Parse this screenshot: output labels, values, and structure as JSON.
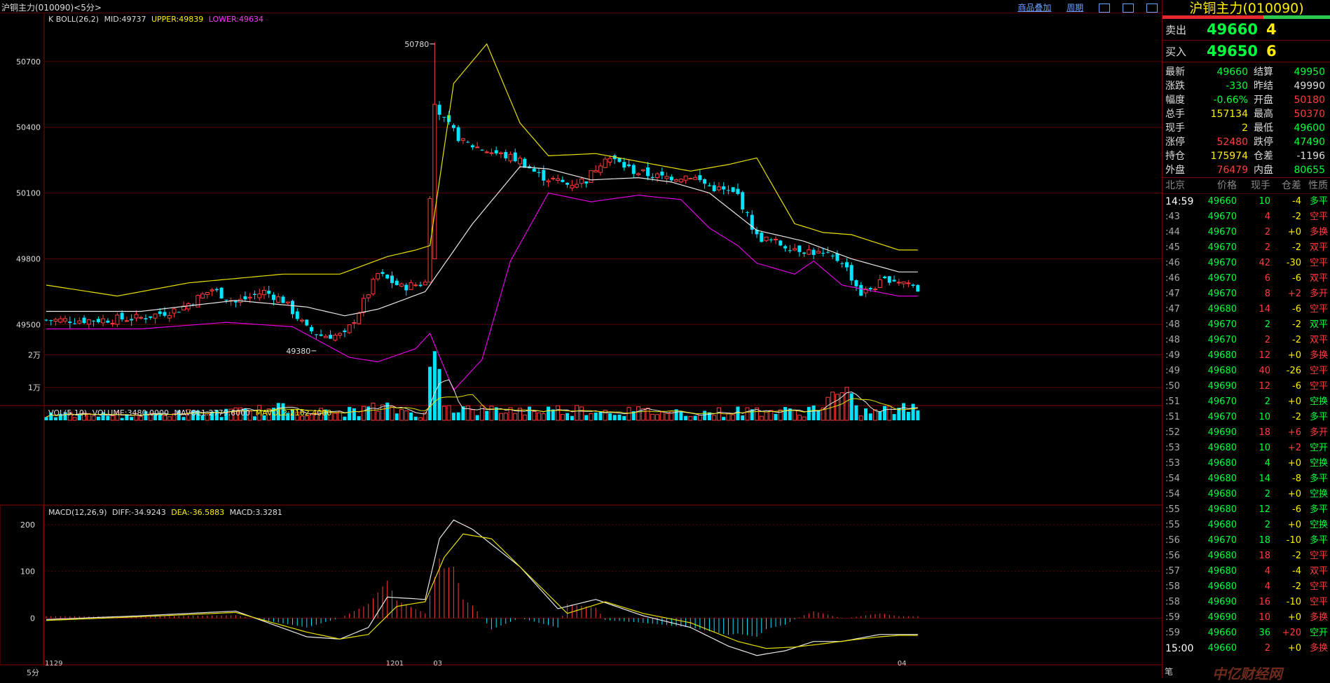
{
  "window": {
    "title": "沪铜主力(010090)<5分>",
    "links": [
      "商品叠加",
      "周期"
    ]
  },
  "indicators": {
    "boll": {
      "label": "K  BOLL(26,2)",
      "mid": "MID:49737",
      "upper": "UPPER:49839",
      "lower": "LOWER:49634"
    },
    "vol": {
      "label": "VOL(5,10)",
      "volume": "VOLUME:3480.0000",
      "mavol1": "MAVOL1:2779.6000",
      "mavol2": "MAVOL2:2162.4000"
    },
    "macd": {
      "label": "MACD(12,26,9)",
      "diff": "DIFF:-34.9243",
      "dea": "DEA:-36.5883",
      "macd": "MACD:3.3281"
    }
  },
  "chart_data": {
    "type": "candlestick",
    "price_axis": {
      "ticks": [
        "50700",
        "50400",
        "50100",
        "49800",
        "49500"
      ],
      "values": [
        50700,
        50400,
        50100,
        49800,
        49500
      ],
      "range": [
        49210,
        50920
      ]
    },
    "volume_axis": {
      "ticks": [
        "2万",
        "1万"
      ],
      "values": [
        20000,
        10000
      ],
      "range": [
        0,
        23500
      ]
    },
    "macd_axis": {
      "ticks": [
        "200",
        "100",
        "0"
      ],
      "values": [
        200,
        100,
        0
      ],
      "range": [
        -100,
        230
      ]
    },
    "x_labels": [
      "1129",
      "1201",
      "03",
      "04"
    ],
    "x_label_index": [
      0,
      72,
      82,
      180
    ],
    "period": "5分",
    "annotations": [
      {
        "text": "50780",
        "value": 50780,
        "index": 82
      },
      {
        "text": "49380",
        "value": 49380,
        "index": 57
      }
    ],
    "close_waypoints": [
      [
        0,
        49520
      ],
      [
        10,
        49520
      ],
      [
        20,
        49530
      ],
      [
        28,
        49570
      ],
      [
        35,
        49660
      ],
      [
        40,
        49600
      ],
      [
        46,
        49650
      ],
      [
        50,
        49610
      ],
      [
        52,
        49560
      ],
      [
        55,
        49480
      ],
      [
        58,
        49450
      ],
      [
        63,
        49450
      ],
      [
        66,
        49560
      ],
      [
        70,
        49730
      ],
      [
        75,
        49670
      ],
      [
        80,
        49690
      ],
      [
        82,
        50500
      ],
      [
        84,
        50430
      ],
      [
        88,
        50330
      ],
      [
        95,
        50280
      ],
      [
        100,
        50250
      ],
      [
        104,
        50180
      ],
      [
        110,
        50140
      ],
      [
        114,
        50160
      ],
      [
        118,
        50270
      ],
      [
        124,
        50200
      ],
      [
        130,
        50170
      ],
      [
        136,
        50180
      ],
      [
        140,
        50130
      ],
      [
        146,
        50090
      ],
      [
        150,
        49900
      ],
      [
        156,
        49860
      ],
      [
        162,
        49830
      ],
      [
        168,
        49790
      ],
      [
        172,
        49640
      ],
      [
        178,
        49710
      ],
      [
        182,
        49690
      ],
      [
        184,
        49660
      ]
    ],
    "upper_waypoints": [
      [
        0,
        49680
      ],
      [
        15,
        49630
      ],
      [
        30,
        49690
      ],
      [
        50,
        49730
      ],
      [
        62,
        49730
      ],
      [
        72,
        49810
      ],
      [
        78,
        49840
      ],
      [
        81,
        49860
      ],
      [
        86,
        50600
      ],
      [
        93,
        50780
      ],
      [
        100,
        50420
      ],
      [
        106,
        50270
      ],
      [
        116,
        50280
      ],
      [
        126,
        50240
      ],
      [
        136,
        50200
      ],
      [
        144,
        50230
      ],
      [
        150,
        50260
      ],
      [
        158,
        49960
      ],
      [
        164,
        49920
      ],
      [
        170,
        49910
      ],
      [
        180,
        49840
      ]
    ],
    "mid_waypoints": [
      [
        0,
        49560
      ],
      [
        20,
        49560
      ],
      [
        40,
        49610
      ],
      [
        55,
        49580
      ],
      [
        63,
        49540
      ],
      [
        70,
        49570
      ],
      [
        80,
        49650
      ],
      [
        90,
        49960
      ],
      [
        100,
        50220
      ],
      [
        106,
        50210
      ],
      [
        115,
        50160
      ],
      [
        125,
        50170
      ],
      [
        132,
        50150
      ],
      [
        140,
        50100
      ],
      [
        150,
        49930
      ],
      [
        160,
        49880
      ],
      [
        170,
        49800
      ],
      [
        180,
        49740
      ]
    ],
    "lower_waypoints": [
      [
        0,
        49480
      ],
      [
        20,
        49480
      ],
      [
        38,
        49510
      ],
      [
        52,
        49490
      ],
      [
        58,
        49420
      ],
      [
        64,
        49350
      ],
      [
        70,
        49330
      ],
      [
        78,
        49390
      ],
      [
        81,
        49460
      ],
      [
        86,
        49200
      ],
      [
        92,
        49340
      ],
      [
        98,
        49790
      ],
      [
        106,
        50100
      ],
      [
        115,
        50060
      ],
      [
        125,
        50090
      ],
      [
        134,
        50070
      ],
      [
        140,
        49940
      ],
      [
        146,
        49860
      ],
      [
        150,
        49780
      ],
      [
        158,
        49730
      ],
      [
        162,
        49790
      ],
      [
        168,
        49680
      ],
      [
        180,
        49630
      ]
    ],
    "volume_waypoints": [
      [
        0,
        1500
      ],
      [
        20,
        1800
      ],
      [
        40,
        2500
      ],
      [
        50,
        3500
      ],
      [
        60,
        2200
      ],
      [
        65,
        2800
      ],
      [
        70,
        3800
      ],
      [
        75,
        3000
      ],
      [
        80,
        1700
      ],
      [
        81,
        12000
      ],
      [
        82,
        22000
      ],
      [
        83,
        14000
      ],
      [
        84,
        9000
      ],
      [
        86,
        4000
      ],
      [
        90,
        3000
      ],
      [
        110,
        3200
      ],
      [
        115,
        3300
      ],
      [
        120,
        2800
      ],
      [
        140,
        2400
      ],
      [
        150,
        3000
      ],
      [
        160,
        2500
      ],
      [
        168,
        8000
      ],
      [
        172,
        2500
      ],
      [
        180,
        3500
      ]
    ],
    "dif_waypoints": [
      [
        0,
        -3
      ],
      [
        20,
        5
      ],
      [
        40,
        15
      ],
      [
        55,
        -40
      ],
      [
        62,
        -45
      ],
      [
        68,
        -20
      ],
      [
        72,
        45
      ],
      [
        80,
        40
      ],
      [
        83,
        170
      ],
      [
        86,
        210
      ],
      [
        90,
        190
      ],
      [
        100,
        110
      ],
      [
        108,
        20
      ],
      [
        116,
        40
      ],
      [
        126,
        5
      ],
      [
        136,
        -20
      ],
      [
        144,
        -60
      ],
      [
        150,
        -80
      ],
      [
        156,
        -70
      ],
      [
        162,
        -50
      ],
      [
        168,
        -50
      ],
      [
        176,
        -35
      ],
      [
        180,
        -35
      ]
    ],
    "dea_waypoints": [
      [
        0,
        -5
      ],
      [
        20,
        3
      ],
      [
        40,
        12
      ],
      [
        55,
        -30
      ],
      [
        62,
        -45
      ],
      [
        68,
        -35
      ],
      [
        74,
        25
      ],
      [
        80,
        35
      ],
      [
        84,
        130
      ],
      [
        88,
        180
      ],
      [
        94,
        170
      ],
      [
        104,
        70
      ],
      [
        110,
        10
      ],
      [
        118,
        35
      ],
      [
        126,
        10
      ],
      [
        136,
        -10
      ],
      [
        146,
        -50
      ],
      [
        152,
        -65
      ],
      [
        158,
        -62
      ],
      [
        164,
        -55
      ],
      [
        170,
        -47
      ],
      [
        176,
        -40
      ],
      [
        180,
        -37
      ]
    ]
  },
  "quote_panel": {
    "title": "沪铜主力(010090)",
    "sell": {
      "label": "卖出",
      "price": "49660",
      "vol": "4"
    },
    "buy": {
      "label": "买入",
      "price": "49650",
      "vol": "6"
    },
    "stats": [
      [
        {
          "l": "最新",
          "v": "49660",
          "c": "g"
        },
        {
          "l": "结算",
          "v": "49950",
          "c": "g"
        }
      ],
      [
        {
          "l": "涨跌",
          "v": "-330",
          "c": "g"
        },
        {
          "l": "昨结",
          "v": "49990",
          "c": "w"
        }
      ],
      [
        {
          "l": "幅度",
          "v": "-0.66%",
          "c": "g"
        },
        {
          "l": "开盘",
          "v": "50180",
          "c": "r"
        }
      ],
      [
        {
          "l": "总手",
          "v": "157134",
          "c": "y"
        },
        {
          "l": "最高",
          "v": "50370",
          "c": "r"
        }
      ],
      [
        {
          "l": "现手",
          "v": "2",
          "c": "y"
        },
        {
          "l": "最低",
          "v": "49600",
          "c": "g"
        }
      ],
      [
        {
          "l": "涨停",
          "v": "52480",
          "c": "r"
        },
        {
          "l": "跌停",
          "v": "47490",
          "c": "g"
        }
      ],
      [
        {
          "l": "持仓",
          "v": "175974",
          "c": "y"
        },
        {
          "l": "仓差",
          "v": "-1196",
          "c": "w"
        }
      ],
      [
        {
          "l": "外盘",
          "v": "76479",
          "c": "r"
        },
        {
          "l": "内盘",
          "v": "80655",
          "c": "g"
        }
      ]
    ],
    "ticks_header": [
      "北京",
      "价格",
      "现手",
      "仓差",
      "性质"
    ],
    "ticks": [
      [
        "14:59",
        "49660",
        "10",
        "-4",
        "多平",
        "g"
      ],
      [
        ":43",
        "49670",
        "4",
        "-2",
        "空平",
        "r"
      ],
      [
        ":44",
        "49670",
        "2",
        "+0",
        "多换",
        "r"
      ],
      [
        ":45",
        "49670",
        "2",
        "-2",
        "双平",
        "r"
      ],
      [
        ":46",
        "49670",
        "42",
        "-30",
        "空平",
        "r"
      ],
      [
        ":46",
        "49670",
        "6",
        "-6",
        "双平",
        "r"
      ],
      [
        ":47",
        "49670",
        "8",
        "+2",
        "多开",
        "r"
      ],
      [
        ":47",
        "49680",
        "14",
        "-6",
        "空平",
        "r"
      ],
      [
        ":48",
        "49670",
        "2",
        "-2",
        "双平",
        "g"
      ],
      [
        ":48",
        "49670",
        "2",
        "-2",
        "双平",
        "r"
      ],
      [
        ":49",
        "49680",
        "12",
        "+0",
        "多换",
        "r"
      ],
      [
        ":49",
        "49680",
        "40",
        "-26",
        "空平",
        "r"
      ],
      [
        ":50",
        "49690",
        "12",
        "-6",
        "空平",
        "r"
      ],
      [
        ":51",
        "49670",
        "2",
        "+0",
        "空换",
        "g"
      ],
      [
        ":51",
        "49670",
        "10",
        "-2",
        "多平",
        "g"
      ],
      [
        ":52",
        "49690",
        "18",
        "+6",
        "多开",
        "r"
      ],
      [
        ":53",
        "49680",
        "10",
        "+2",
        "空开",
        "g"
      ],
      [
        ":53",
        "49680",
        "4",
        "+0",
        "空换",
        "g"
      ],
      [
        ":54",
        "49680",
        "14",
        "-8",
        "多平",
        "g"
      ],
      [
        ":54",
        "49680",
        "2",
        "+0",
        "空换",
        "g"
      ],
      [
        ":55",
        "49680",
        "12",
        "-6",
        "多平",
        "g"
      ],
      [
        ":55",
        "49680",
        "2",
        "+0",
        "空换",
        "g"
      ],
      [
        ":56",
        "49670",
        "18",
        "-10",
        "多平",
        "g"
      ],
      [
        ":56",
        "49680",
        "18",
        "-2",
        "空平",
        "r"
      ],
      [
        ":57",
        "49680",
        "4",
        "-4",
        "双平",
        "r"
      ],
      [
        ":58",
        "49680",
        "4",
        "-2",
        "空平",
        "r"
      ],
      [
        ":58",
        "49690",
        "16",
        "-10",
        "空平",
        "r"
      ],
      [
        ":59",
        "49690",
        "10",
        "+0",
        "多换",
        "r"
      ],
      [
        ":59",
        "49660",
        "36",
        "+20",
        "空开",
        "g"
      ],
      [
        "15:00",
        "49660",
        "2",
        "+0",
        "多换",
        "r"
      ]
    ],
    "footer": "笔",
    "watermark": "中亿财经网"
  }
}
